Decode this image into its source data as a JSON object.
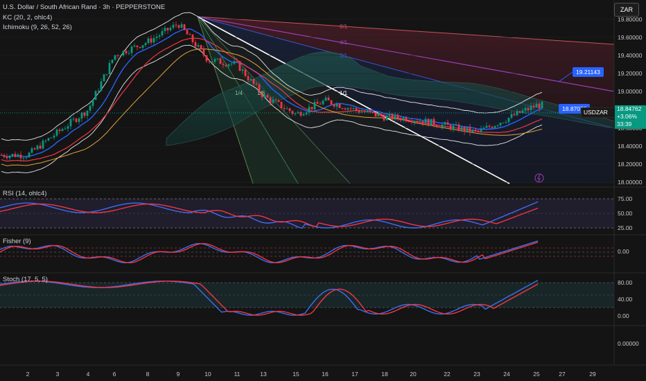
{
  "header": {
    "title": "U.S. Dollar / South African Rand · 3h · PEPPERSTONE",
    "indicator_kc": "KC (20, 2, ohlc4)",
    "indicator_ichimoku": "Ichimoku (9, 26, 52, 26)",
    "currency_button": "ZAR"
  },
  "price_axis": {
    "ticks": [
      "19.80000",
      "19.60000",
      "19.40000",
      "19.20000",
      "19.00000",
      "18.80000",
      "18.60000",
      "18.40000",
      "18.20000",
      "18.00000"
    ],
    "current": {
      "symbol": "USDZAR",
      "price": "18.84762",
      "change": "+3.06%",
      "countdown": "33:39"
    },
    "callout_upper": "19.21143",
    "callout_lower": "18.87070"
  },
  "fib_fan_labels": [
    "8/1",
    "4/1",
    "3/1",
    "1/1",
    "1/4",
    "1/8"
  ],
  "panes": {
    "rsi": {
      "label": "RSI (14, ohlc4)",
      "ticks": [
        "75.00",
        "50.00",
        "25.00"
      ]
    },
    "fisher": {
      "label": "Fisher (9)",
      "ticks": [
        "0.00"
      ]
    },
    "stoch": {
      "label": "Stoch (17, 5, 5)",
      "ticks": [
        "80.00",
        "40.00",
        "0.00"
      ]
    },
    "empty": {
      "ticks": [
        "0.00000"
      ]
    }
  },
  "x_axis_labels": [
    "2",
    "3",
    "4",
    "6",
    "8",
    "9",
    "10",
    "11",
    "13",
    "15",
    "16",
    "17",
    "18",
    "20",
    "22",
    "23",
    "24",
    "25",
    "27",
    "29"
  ],
  "colors": {
    "up": "#089981",
    "down": "#f23645",
    "background": "#141414",
    "accent": "#2962ff",
    "rsi_line": "#3d6ff0",
    "rsi_ma": "#f23645",
    "kc_basis": "#2962ff",
    "kc_band": "#ffffff"
  },
  "chart_data": {
    "type": "candlestick",
    "title": "U.S. Dollar / South African Rand · 3h · PEPPERSTONE",
    "ylim": [
      18.0,
      19.95
    ],
    "x_dates": [
      "2",
      "3",
      "4",
      "6",
      "8",
      "9",
      "10",
      "11",
      "13",
      "15",
      "16",
      "17",
      "18",
      "20",
      "22",
      "23",
      "24",
      "25"
    ],
    "approx_close_path": [
      {
        "date": "2",
        "price": 18.3
      },
      {
        "date": "3",
        "price": 18.55
      },
      {
        "date": "4",
        "price": 18.8
      },
      {
        "date": "6",
        "price": 19.4
      },
      {
        "date": "8",
        "price": 19.55
      },
      {
        "date": "9",
        "price": 19.75
      },
      {
        "date": "10",
        "price": 19.35
      },
      {
        "date": "11",
        "price": 19.3
      },
      {
        "date": "13",
        "price": 18.95
      },
      {
        "date": "15",
        "price": 18.75
      },
      {
        "date": "16",
        "price": 18.9
      },
      {
        "date": "17",
        "price": 18.8
      },
      {
        "date": "18",
        "price": 18.72
      },
      {
        "date": "20",
        "price": 18.7
      },
      {
        "date": "22",
        "price": 18.62
      },
      {
        "date": "23",
        "price": 18.55
      },
      {
        "date": "24",
        "price": 18.7
      },
      {
        "date": "25",
        "price": 18.85
      }
    ],
    "last_price": 18.84762,
    "rsi_ylim": [
      0,
      100
    ],
    "stoch_ylim": [
      -10,
      100
    ],
    "grid": true
  }
}
